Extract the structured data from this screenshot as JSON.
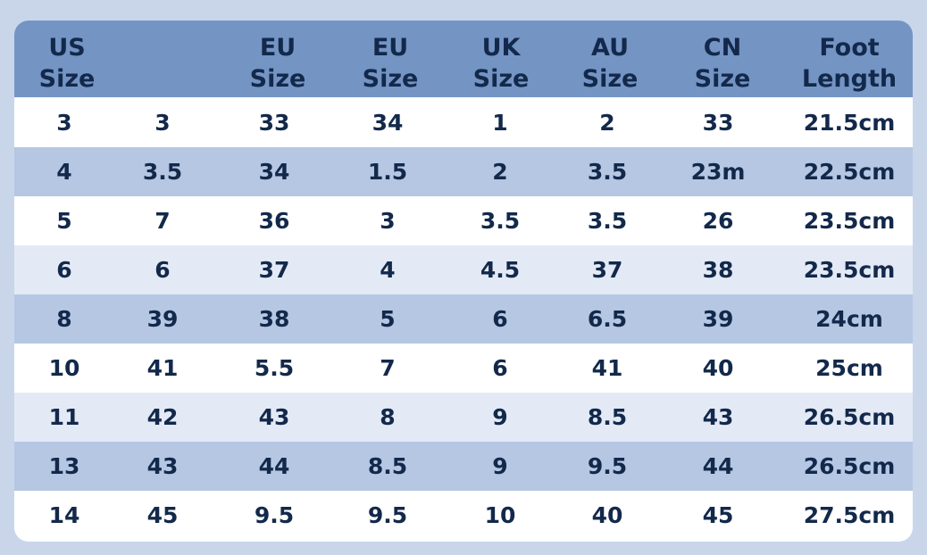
{
  "colors": {
    "page_background": "#c9d6ea",
    "header_background": "#7494c4",
    "text": "#13294b",
    "row_backgrounds": [
      "#ffffff",
      "#b5c7e3",
      "#ffffff",
      "#e3eaf5",
      "#b5c7e3",
      "#ffffff",
      "#e3eaf5",
      "#b5c7e3",
      "#ffffff"
    ]
  },
  "table": {
    "headers": [
      [
        "US",
        "Size"
      ],
      [
        "",
        ""
      ],
      [
        "EU",
        "Size"
      ],
      [
        "EU",
        "Size"
      ],
      [
        "UK",
        "Size"
      ],
      [
        "AU",
        "Size"
      ],
      [
        "CN",
        "Size"
      ],
      [
        "Foot",
        "Length"
      ]
    ],
    "rows": [
      [
        "3",
        "3",
        "33",
        "34",
        "1",
        "2",
        "33",
        "21.5cm"
      ],
      [
        "4",
        "3.5",
        "34",
        "1.5",
        "2",
        "3.5",
        "23m",
        "22.5cm"
      ],
      [
        "5",
        "7",
        "36",
        "3",
        "3.5",
        "3.5",
        "26",
        "23.5cm"
      ],
      [
        "6",
        "6",
        "37",
        "4",
        "4.5",
        "37",
        "38",
        "23.5cm"
      ],
      [
        "8",
        "39",
        "38",
        "5",
        "6",
        "6.5",
        "39",
        "24cm"
      ],
      [
        "10",
        "41",
        "5.5",
        "7",
        "6",
        "41",
        "40",
        "25cm"
      ],
      [
        "11",
        "42",
        "43",
        "8",
        "9",
        "8.5",
        "43",
        "26.5cm"
      ],
      [
        "13",
        "43",
        "44",
        "8.5",
        "9",
        "9.5",
        "44",
        "26.5cm"
      ],
      [
        "14",
        "45",
        "9.5",
        "9.5",
        "10",
        "40",
        "45",
        "27.5cm"
      ]
    ]
  }
}
